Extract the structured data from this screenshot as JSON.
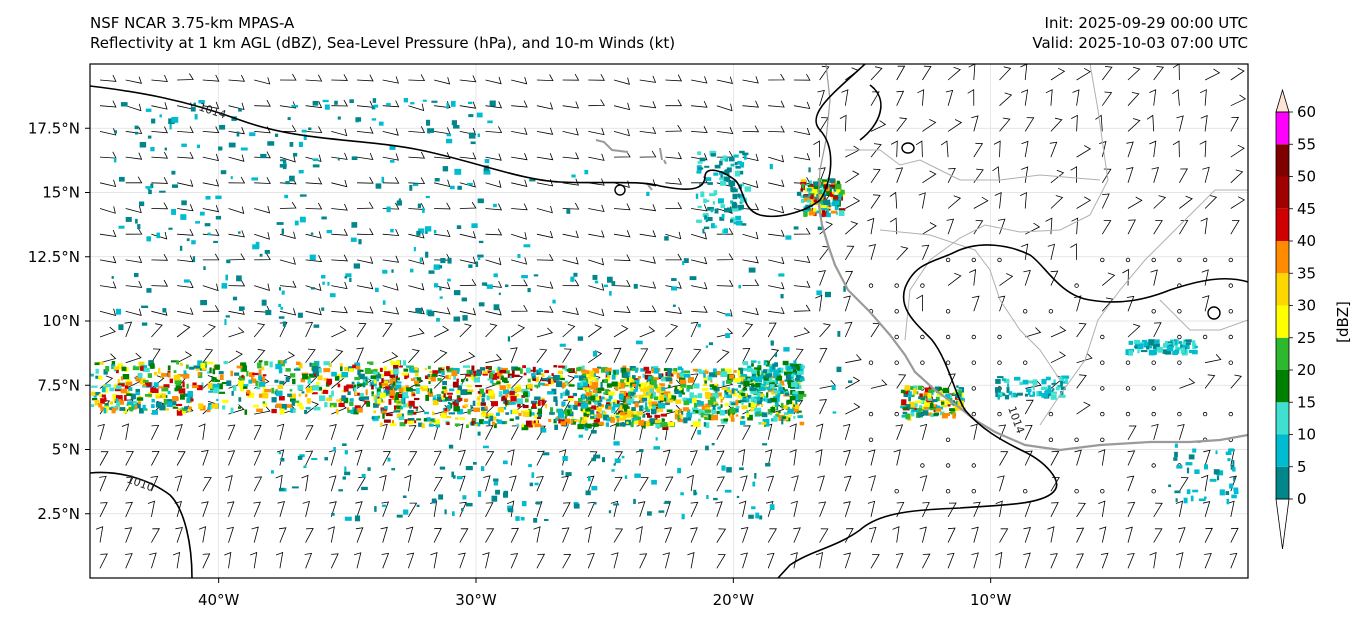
{
  "title": {
    "line1": "NSF NCAR 3.75-km MPAS-A",
    "line2": "Reflectivity at 1 km AGL (dBZ), Sea-Level Pressure (hPa), and 10-m Winds (kt)",
    "init": "Init: 2025-09-29 00:00 UTC",
    "valid": "Valid: 2025-10-03 07:00 UTC"
  },
  "axes": {
    "lon_range": [
      -45,
      0
    ],
    "lat_range": [
      0,
      20
    ],
    "lon_ticks": [
      {
        "value": -40,
        "label": "40°W"
      },
      {
        "value": -30,
        "label": "30°W"
      },
      {
        "value": -20,
        "label": "20°W"
      },
      {
        "value": -10,
        "label": "10°W"
      }
    ],
    "lat_ticks": [
      {
        "value": 2.5,
        "label": "2.5°N"
      },
      {
        "value": 5,
        "label": "5°N"
      },
      {
        "value": 7.5,
        "label": "7.5°N"
      },
      {
        "value": 10,
        "label": "10°N"
      },
      {
        "value": 12.5,
        "label": "12.5°N"
      },
      {
        "value": 15,
        "label": "15°N"
      },
      {
        "value": 17.5,
        "label": "17.5°N"
      }
    ]
  },
  "isobars": [
    {
      "label": "1014",
      "lon": -40.3,
      "lat": 18.6
    },
    {
      "label": "1010",
      "lon": -41.9,
      "lat": 3.8
    },
    {
      "label": "1014",
      "lon": -9.2,
      "lat": 6.0
    }
  ],
  "colorbar": {
    "unit_label": "[dBZ]",
    "ticks": [
      "0",
      "5",
      "10",
      "15",
      "20",
      "25",
      "30",
      "35",
      "40",
      "45",
      "50",
      "55",
      "60"
    ],
    "colors": [
      "#00868b",
      "#00bcd0",
      "#40e0d0",
      "#008000",
      "#2db82d",
      "#ffff00",
      "#ffd700",
      "#ff8c00",
      "#d00000",
      "#a00000",
      "#800000",
      "#ff00ff",
      "#ffe4d4"
    ]
  }
}
